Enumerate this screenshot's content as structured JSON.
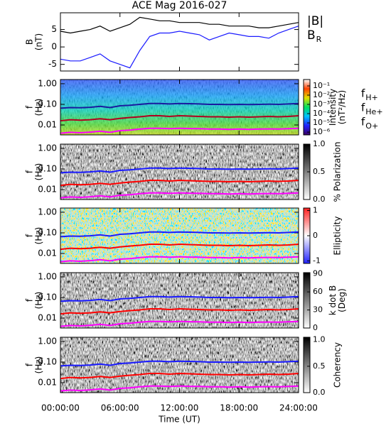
{
  "xaxis": {
    "label": "Time (UT)",
    "xlim": [
      0,
      24
    ],
    "xticks": [
      {
        "value": 0,
        "label": "00:00:00"
      },
      {
        "value": 6,
        "label": "06:00:00"
      },
      {
        "value": 12,
        "label": "12:00:00"
      },
      {
        "value": 18,
        "label": "18:00:00"
      },
      {
        "value": 24,
        "label": "24:00:00"
      }
    ]
  },
  "chart_data": [
    {
      "type": "line",
      "title": "ACE Mag 2016-027",
      "ylabel": [
        "B",
        "(nT)"
      ],
      "ylim": [
        -6.9,
        9.8
      ],
      "yticks": [
        5,
        0,
        -5
      ],
      "x": [
        0,
        1,
        2,
        3,
        4,
        5,
        6,
        7,
        8,
        9,
        10,
        11,
        12,
        13,
        14,
        15,
        16,
        17,
        18,
        19,
        20,
        21,
        22,
        23,
        24
      ],
      "series": [
        {
          "name": "|B|",
          "color": "#000000",
          "values": [
            4.5,
            4,
            4.5,
            5,
            6,
            4.5,
            5.5,
            6.5,
            8.5,
            8,
            7.5,
            7.5,
            7,
            7,
            7,
            6.5,
            6.5,
            6,
            6,
            6,
            5.5,
            5.5,
            6,
            6.5,
            7
          ]
        },
        {
          "name": "B",
          "subscript": "R",
          "color": "#1a1aff",
          "values": [
            -3.5,
            -4,
            -4,
            -3,
            -2,
            -4,
            -5,
            -6,
            -1,
            3,
            4,
            4,
            4.5,
            4,
            3.5,
            2,
            3,
            4,
            3.5,
            3,
            3,
            2.5,
            4,
            5,
            6
          ]
        }
      ]
    },
    {
      "type": "spectrogram",
      "background": "rainbow",
      "ylabel": [
        "f",
        "(Hz)"
      ],
      "log_y": true,
      "ylim": [
        0.0033,
        1.6
      ],
      "yticks": [
        {
          "value": 1,
          "label": "1.00"
        },
        {
          "value": 0.1,
          "label": "0.10"
        },
        {
          "value": 0.01,
          "label": "0.01"
        }
      ],
      "colorbar": {
        "label": [
          "Intensity",
          "(nT²/Hz)"
        ],
        "log": true,
        "lim": [
          5e-07,
          0.49
        ],
        "colors": [
          "#3a0060",
          "#2020ff",
          "#00c0ff",
          "#00e060",
          "#e0e000",
          "#ff4000",
          "#ffffff"
        ],
        "ticks": [
          {
            "value": 0.1,
            "label": "10⁻¹"
          },
          {
            "value": 0.01,
            "label": "10⁻²"
          },
          {
            "value": 0.001,
            "label": "10⁻³"
          },
          {
            "value": 0.0001,
            "label": "10⁻⁴"
          },
          {
            "value": 1e-05,
            "label": "10⁻⁵"
          },
          {
            "value": 1e-06,
            "label": "10⁻⁶"
          }
        ]
      },
      "x": [
        0,
        1,
        2,
        3,
        4,
        5,
        6,
        7,
        8,
        9,
        10,
        11,
        12,
        13,
        14,
        15,
        16,
        17,
        18,
        19,
        20,
        21,
        22,
        23,
        24
      ],
      "series": [
        {
          "name": "f",
          "subscript": "H+",
          "color": "#1a1aa0",
          "values": [
            0.065,
            0.07,
            0.068,
            0.072,
            0.08,
            0.07,
            0.085,
            0.09,
            0.1,
            0.11,
            0.11,
            0.105,
            0.11,
            0.108,
            0.105,
            0.1,
            0.1,
            0.098,
            0.1,
            0.098,
            0.1,
            0.102,
            0.1,
            0.105,
            0.11
          ]
        },
        {
          "name": "f",
          "subscript": "He+",
          "color": "#b00020",
          "values": [
            0.016,
            0.018,
            0.017,
            0.018,
            0.02,
            0.018,
            0.021,
            0.023,
            0.025,
            0.028,
            0.028,
            0.026,
            0.028,
            0.027,
            0.026,
            0.025,
            0.025,
            0.024,
            0.025,
            0.024,
            0.025,
            0.026,
            0.025,
            0.026,
            0.028
          ]
        },
        {
          "name": "f",
          "subscript": "O+",
          "color": "#ff00ff",
          "values": [
            0.004,
            0.0044,
            0.0042,
            0.0045,
            0.005,
            0.0044,
            0.0053,
            0.0056,
            0.0063,
            0.0069,
            0.0069,
            0.0066,
            0.0069,
            0.0067,
            0.0066,
            0.0063,
            0.0063,
            0.0061,
            0.0063,
            0.0061,
            0.0063,
            0.0064,
            0.0063,
            0.0066,
            0.0069
          ]
        }
      ]
    },
    {
      "type": "spectrogram",
      "background": "gray",
      "ylabel": [
        "f",
        "(Hz)"
      ],
      "log_y": true,
      "ylim": [
        0.0033,
        1.6
      ],
      "yticks": [
        {
          "value": 1,
          "label": "1.00"
        },
        {
          "value": 0.1,
          "label": "0.10"
        },
        {
          "value": 0.01,
          "label": "0.01"
        }
      ],
      "colorbar": {
        "label": [
          "% Polarization"
        ],
        "lim": [
          0,
          1
        ],
        "colors": [
          "#ffffff",
          "#000000"
        ],
        "ticks": [
          {
            "value": 1,
            "label": "1.0"
          },
          {
            "value": 0.5,
            "label": "0.5"
          },
          {
            "value": 0,
            "label": "0.0"
          }
        ]
      },
      "x": [
        0,
        1,
        2,
        3,
        4,
        5,
        6,
        7,
        8,
        9,
        10,
        11,
        12,
        13,
        14,
        15,
        16,
        17,
        18,
        19,
        20,
        21,
        22,
        23,
        24
      ],
      "series": [
        {
          "color": "#1a1aff",
          "values": [
            0.065,
            0.07,
            0.068,
            0.072,
            0.08,
            0.07,
            0.085,
            0.09,
            0.1,
            0.11,
            0.11,
            0.105,
            0.11,
            0.108,
            0.105,
            0.1,
            0.1,
            0.098,
            0.1,
            0.098,
            0.1,
            0.102,
            0.1,
            0.105,
            0.11
          ]
        },
        {
          "color": "#ff0000",
          "values": [
            0.016,
            0.018,
            0.017,
            0.018,
            0.02,
            0.018,
            0.021,
            0.023,
            0.025,
            0.028,
            0.028,
            0.026,
            0.028,
            0.027,
            0.026,
            0.025,
            0.025,
            0.024,
            0.025,
            0.024,
            0.025,
            0.026,
            0.025,
            0.026,
            0.028
          ]
        },
        {
          "color": "#ff00ff",
          "values": [
            0.004,
            0.0044,
            0.0042,
            0.0045,
            0.005,
            0.0044,
            0.0053,
            0.0056,
            0.0063,
            0.0069,
            0.0069,
            0.0066,
            0.0069,
            0.0067,
            0.0066,
            0.0063,
            0.0063,
            0.0061,
            0.0063,
            0.0061,
            0.0063,
            0.0064,
            0.0063,
            0.0066,
            0.0069
          ]
        }
      ]
    },
    {
      "type": "spectrogram",
      "background": "ellipticity",
      "ylabel": [
        "f",
        "(Hz)"
      ],
      "log_y": true,
      "ylim": [
        0.0033,
        1.6
      ],
      "yticks": [
        {
          "value": 1,
          "label": "1.00"
        },
        {
          "value": 0.1,
          "label": "0.10"
        },
        {
          "value": 0.01,
          "label": "0.01"
        }
      ],
      "colorbar": {
        "label": [
          "Ellipticity"
        ],
        "lim": [
          -1.1,
          1.1
        ],
        "colors": [
          "#2020ff",
          "#ffffff",
          "#ff2020"
        ],
        "ticks": [
          1,
          0,
          -1
        ]
      },
      "x": [
        0,
        1,
        2,
        3,
        4,
        5,
        6,
        7,
        8,
        9,
        10,
        11,
        12,
        13,
        14,
        15,
        16,
        17,
        18,
        19,
        20,
        21,
        22,
        23,
        24
      ],
      "series": [
        {
          "color": "#1a1aff",
          "values": [
            0.065,
            0.07,
            0.068,
            0.072,
            0.08,
            0.07,
            0.085,
            0.09,
            0.1,
            0.11,
            0.11,
            0.105,
            0.11,
            0.108,
            0.105,
            0.1,
            0.1,
            0.098,
            0.1,
            0.098,
            0.1,
            0.102,
            0.1,
            0.105,
            0.11
          ]
        },
        {
          "color": "#ff0000",
          "values": [
            0.016,
            0.018,
            0.017,
            0.018,
            0.02,
            0.018,
            0.021,
            0.023,
            0.025,
            0.028,
            0.028,
            0.026,
            0.028,
            0.027,
            0.026,
            0.025,
            0.025,
            0.024,
            0.025,
            0.024,
            0.025,
            0.026,
            0.025,
            0.026,
            0.028
          ]
        },
        {
          "color": "#ff00ff",
          "values": [
            0.004,
            0.0044,
            0.0042,
            0.0045,
            0.005,
            0.0044,
            0.0053,
            0.0056,
            0.0063,
            0.0069,
            0.0069,
            0.0066,
            0.0069,
            0.0067,
            0.0066,
            0.0063,
            0.0063,
            0.0061,
            0.0063,
            0.0061,
            0.0063,
            0.0064,
            0.0063,
            0.0066,
            0.0069
          ]
        }
      ]
    },
    {
      "type": "spectrogram",
      "background": "gray",
      "ylabel": [
        "f",
        "(Hz)"
      ],
      "log_y": true,
      "ylim": [
        0.0033,
        1.6
      ],
      "yticks": [
        {
          "value": 1,
          "label": "1.00"
        },
        {
          "value": 0.1,
          "label": "0.10"
        },
        {
          "value": 0.01,
          "label": "0.01"
        }
      ],
      "colorbar": {
        "label": [
          "k dot B",
          "(Deg)"
        ],
        "lim": [
          0,
          92
        ],
        "colors": [
          "#ffffff",
          "#000000"
        ],
        "ticks": [
          90,
          60,
          30,
          0
        ]
      },
      "x": [
        0,
        1,
        2,
        3,
        4,
        5,
        6,
        7,
        8,
        9,
        10,
        11,
        12,
        13,
        14,
        15,
        16,
        17,
        18,
        19,
        20,
        21,
        22,
        23,
        24
      ],
      "series": [
        {
          "color": "#1a1aff",
          "values": [
            0.065,
            0.07,
            0.068,
            0.072,
            0.08,
            0.07,
            0.085,
            0.09,
            0.1,
            0.11,
            0.11,
            0.105,
            0.11,
            0.108,
            0.105,
            0.1,
            0.1,
            0.098,
            0.1,
            0.098,
            0.1,
            0.102,
            0.1,
            0.105,
            0.11
          ]
        },
        {
          "color": "#ff0000",
          "values": [
            0.016,
            0.018,
            0.017,
            0.018,
            0.02,
            0.018,
            0.021,
            0.023,
            0.025,
            0.028,
            0.028,
            0.026,
            0.028,
            0.027,
            0.026,
            0.025,
            0.025,
            0.024,
            0.025,
            0.024,
            0.025,
            0.026,
            0.025,
            0.026,
            0.028
          ]
        },
        {
          "color": "#ff00ff",
          "values": [
            0.004,
            0.0044,
            0.0042,
            0.0045,
            0.005,
            0.0044,
            0.0053,
            0.0056,
            0.0063,
            0.0069,
            0.0069,
            0.0066,
            0.0069,
            0.0067,
            0.0066,
            0.0063,
            0.0063,
            0.0061,
            0.0063,
            0.0061,
            0.0063,
            0.0064,
            0.0063,
            0.0066,
            0.0069
          ]
        }
      ]
    },
    {
      "type": "spectrogram",
      "background": "gray",
      "ylabel": [
        "f",
        "(Hz)"
      ],
      "log_y": true,
      "ylim": [
        0.0033,
        1.6
      ],
      "yticks": [
        {
          "value": 1,
          "label": "1.00"
        },
        {
          "value": 0.1,
          "label": "0.10"
        },
        {
          "value": 0.01,
          "label": "0.01"
        }
      ],
      "colorbar": {
        "label": [
          "Coherency"
        ],
        "lim": [
          0,
          1.05
        ],
        "colors": [
          "#ffffff",
          "#000000"
        ],
        "ticks": [
          {
            "value": 1,
            "label": "1.0"
          },
          {
            "value": 0.5,
            "label": "0.5"
          },
          {
            "value": 0,
            "label": "0.0"
          }
        ]
      },
      "x": [
        0,
        1,
        2,
        3,
        4,
        5,
        6,
        7,
        8,
        9,
        10,
        11,
        12,
        13,
        14,
        15,
        16,
        17,
        18,
        19,
        20,
        21,
        22,
        23,
        24
      ],
      "series": [
        {
          "color": "#1a1aff",
          "values": [
            0.065,
            0.07,
            0.068,
            0.072,
            0.08,
            0.07,
            0.085,
            0.09,
            0.1,
            0.11,
            0.11,
            0.105,
            0.11,
            0.108,
            0.105,
            0.1,
            0.1,
            0.098,
            0.1,
            0.098,
            0.1,
            0.102,
            0.1,
            0.105,
            0.11
          ]
        },
        {
          "color": "#ff0000",
          "values": [
            0.016,
            0.018,
            0.017,
            0.018,
            0.02,
            0.018,
            0.021,
            0.023,
            0.025,
            0.028,
            0.028,
            0.026,
            0.028,
            0.027,
            0.026,
            0.025,
            0.025,
            0.024,
            0.025,
            0.024,
            0.025,
            0.026,
            0.025,
            0.026,
            0.028
          ]
        },
        {
          "color": "#ff00ff",
          "values": [
            0.004,
            0.0044,
            0.0042,
            0.0045,
            0.005,
            0.0044,
            0.0053,
            0.0056,
            0.0063,
            0.0069,
            0.0069,
            0.0066,
            0.0069,
            0.0067,
            0.0066,
            0.0063,
            0.0063,
            0.0061,
            0.0063,
            0.0061,
            0.0063,
            0.0064,
            0.0063,
            0.0066,
            0.0069
          ]
        }
      ]
    }
  ]
}
